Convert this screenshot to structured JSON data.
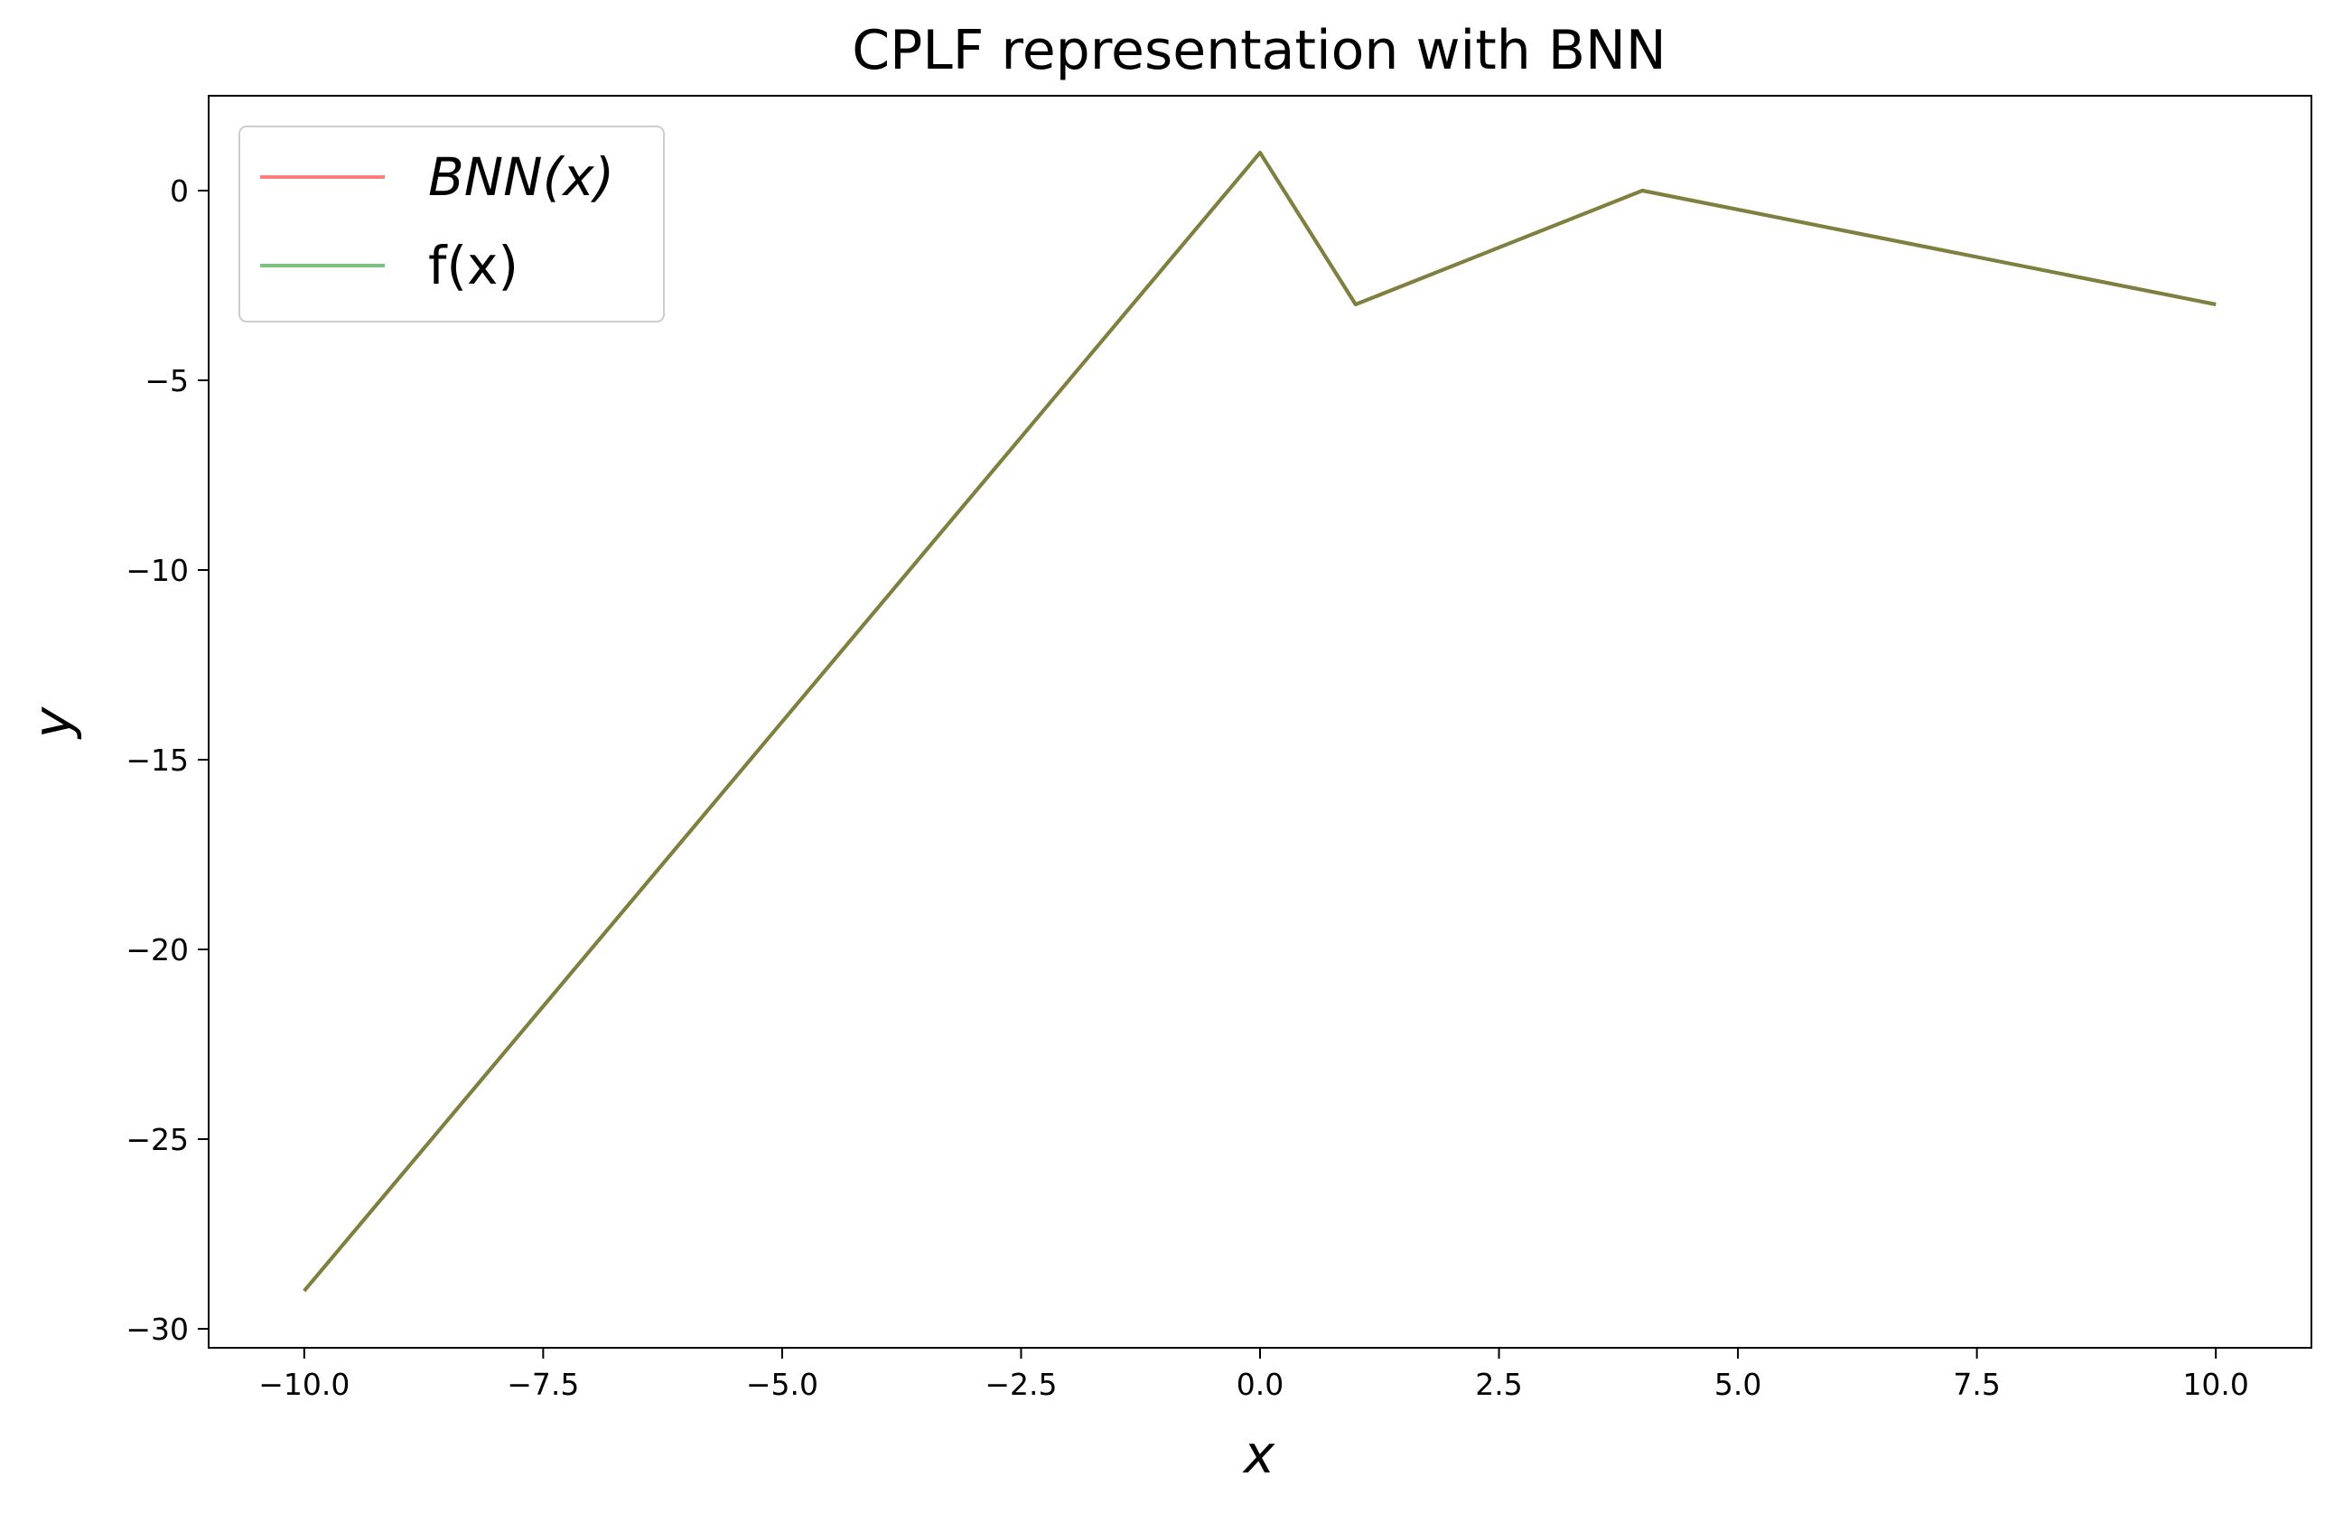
{
  "chart_data": {
    "type": "line",
    "title": "CPLF representation with BNN",
    "xlabel": "x",
    "ylabel": "y",
    "xlim": [
      -11.0,
      11.0
    ],
    "ylim": [
      -30.5,
      2.5
    ],
    "xticks": [
      -10.0,
      -7.5,
      -5.0,
      -2.5,
      0.0,
      2.5,
      5.0,
      7.5,
      10.0
    ],
    "xtick_labels": [
      "−10.0",
      "−7.5",
      "−5.0",
      "−2.5",
      "0.0",
      "2.5",
      "5.0",
      "7.5",
      "10.0"
    ],
    "yticks": [
      0,
      -5,
      -10,
      -15,
      -20,
      -25,
      -30
    ],
    "ytick_labels": [
      "0",
      "−5",
      "−10",
      "−15",
      "−20",
      "−25",
      "−30"
    ],
    "grid": false,
    "legend_position": "top-left",
    "series": [
      {
        "name": "BNN(x)",
        "color": "#ff8080",
        "x": [
          -10.0,
          0.0,
          1.0,
          4.0,
          10.0
        ],
        "y": [
          -29.0,
          1.0,
          -3.0,
          0.0,
          -3.0
        ]
      },
      {
        "name": "f(x)",
        "color": "#80c080",
        "x": [
          -10.0,
          0.0,
          1.0,
          4.0,
          10.0
        ],
        "y": [
          -29.0,
          1.0,
          -3.0,
          0.0,
          -3.0
        ]
      }
    ],
    "overlap_line_color": "#7f7f40"
  }
}
